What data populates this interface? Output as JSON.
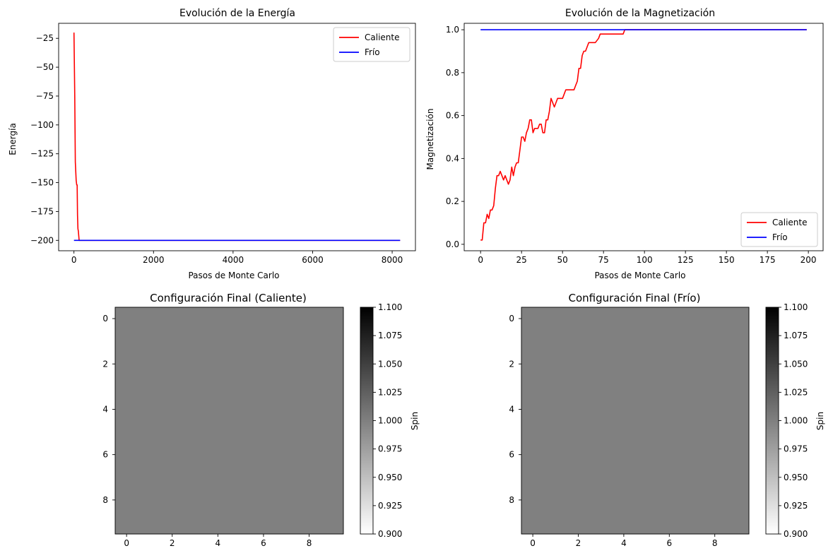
{
  "chart_data": [
    {
      "type": "line",
      "title": "Evolución de la Energía",
      "xlabel": "Pasos de Monte Carlo",
      "ylabel": "Energía",
      "xlim": [
        -385,
        8585
      ],
      "ylim": [
        -209,
        -12
      ],
      "xticks": [
        0,
        2000,
        4000,
        6000,
        8000
      ],
      "xtick_labels": [
        "0",
        "2000",
        "4000",
        "6000",
        "8000"
      ],
      "yticks": [
        -200,
        -175,
        -150,
        -125,
        -100,
        -75,
        -50,
        -25
      ],
      "ytick_labels": [
        "−200",
        "−175",
        "−150",
        "−125",
        "−100",
        "−75",
        "−50",
        "−25"
      ],
      "legend": "top-right",
      "grid": false,
      "series": [
        {
          "name": "Caliente",
          "color": "#ff0000",
          "x": [
            0,
            20,
            35,
            55,
            70,
            80,
            90,
            100,
            110,
            130,
            150,
            200,
            1000,
            4000,
            8200
          ],
          "y": [
            -20,
            -75,
            -132,
            -148,
            -152,
            -152,
            -178,
            -190,
            -192,
            -200,
            -200,
            -200,
            -200,
            -200,
            -200
          ]
        },
        {
          "name": "Frío",
          "color": "#0000ff",
          "x": [
            0,
            8200
          ],
          "y": [
            -200,
            -200
          ]
        }
      ]
    },
    {
      "type": "line",
      "title": "Evolución de la Magnetización",
      "xlabel": "Pasos de Monte Carlo",
      "ylabel": "Magnetización",
      "xlim": [
        -10,
        209
      ],
      "ylim": [
        -0.03,
        1.03
      ],
      "xticks": [
        0,
        25,
        50,
        75,
        100,
        125,
        150,
        175,
        200
      ],
      "xtick_labels": [
        "0",
        "25",
        "50",
        "75",
        "100",
        "125",
        "150",
        "175",
        "200"
      ],
      "yticks": [
        0.0,
        0.2,
        0.4,
        0.6,
        0.8,
        1.0
      ],
      "ytick_labels": [
        "0.0",
        "0.2",
        "0.4",
        "0.6",
        "0.8",
        "1.0"
      ],
      "legend": "bottom-right",
      "grid": false,
      "series": [
        {
          "name": "Caliente",
          "color": "#ff0000",
          "x": [
            0,
            1,
            2,
            3,
            4,
            5,
            6,
            7,
            8,
            9,
            10,
            11,
            12,
            13,
            14,
            15,
            16,
            17,
            18,
            19,
            20,
            21,
            22,
            23,
            24,
            25,
            26,
            27,
            28,
            29,
            30,
            31,
            32,
            33,
            34,
            35,
            36,
            37,
            38,
            39,
            40,
            41,
            42,
            43,
            44,
            45,
            46,
            47,
            48,
            50,
            52,
            54,
            55,
            56,
            57,
            58,
            59,
            60,
            61,
            62,
            63,
            64,
            65,
            66,
            67,
            68,
            70,
            72,
            73,
            75,
            80,
            85,
            87,
            88,
            100,
            150,
            199
          ],
          "y": [
            0.02,
            0.02,
            0.1,
            0.1,
            0.14,
            0.12,
            0.16,
            0.16,
            0.18,
            0.26,
            0.32,
            0.32,
            0.34,
            0.32,
            0.3,
            0.32,
            0.3,
            0.28,
            0.3,
            0.36,
            0.32,
            0.36,
            0.38,
            0.38,
            0.44,
            0.5,
            0.5,
            0.48,
            0.52,
            0.54,
            0.58,
            0.58,
            0.52,
            0.54,
            0.54,
            0.54,
            0.56,
            0.56,
            0.52,
            0.52,
            0.58,
            0.58,
            0.62,
            0.68,
            0.66,
            0.64,
            0.66,
            0.68,
            0.68,
            0.68,
            0.72,
            0.72,
            0.72,
            0.72,
            0.72,
            0.74,
            0.76,
            0.82,
            0.82,
            0.88,
            0.9,
            0.9,
            0.92,
            0.94,
            0.94,
            0.94,
            0.94,
            0.96,
            0.98,
            0.98,
            0.98,
            0.98,
            0.98,
            1.0,
            1.0,
            1.0,
            1.0
          ]
        },
        {
          "name": "Frío",
          "color": "#0000ff",
          "x": [
            0,
            199
          ],
          "y": [
            1.0,
            1.0
          ]
        }
      ]
    },
    {
      "type": "heatmap",
      "title": "Configuración Final (Caliente)",
      "rows": 10,
      "cols": 10,
      "value": 1.0,
      "cell_color": "#808080",
      "xticks": [
        0,
        2,
        4,
        6,
        8
      ],
      "yticks": [
        0,
        2,
        4,
        6,
        8
      ],
      "colorbar_label": "Spin",
      "colorbar_range": [
        0.9,
        1.1
      ],
      "colorbar_ticks": [
        "1.100",
        "1.075",
        "1.050",
        "1.025",
        "1.000",
        "0.975",
        "0.950",
        "0.925",
        "0.900"
      ]
    },
    {
      "type": "heatmap",
      "title": "Configuración Final (Frío)",
      "rows": 10,
      "cols": 10,
      "value": 1.0,
      "cell_color": "#808080",
      "xticks": [
        0,
        2,
        4,
        6,
        8
      ],
      "yticks": [
        0,
        2,
        4,
        6,
        8
      ],
      "colorbar_label": "Spin",
      "colorbar_range": [
        0.9,
        1.1
      ],
      "colorbar_ticks": [
        "1.100",
        "1.075",
        "1.050",
        "1.025",
        "1.000",
        "0.975",
        "0.950",
        "0.925",
        "0.900"
      ]
    }
  ]
}
